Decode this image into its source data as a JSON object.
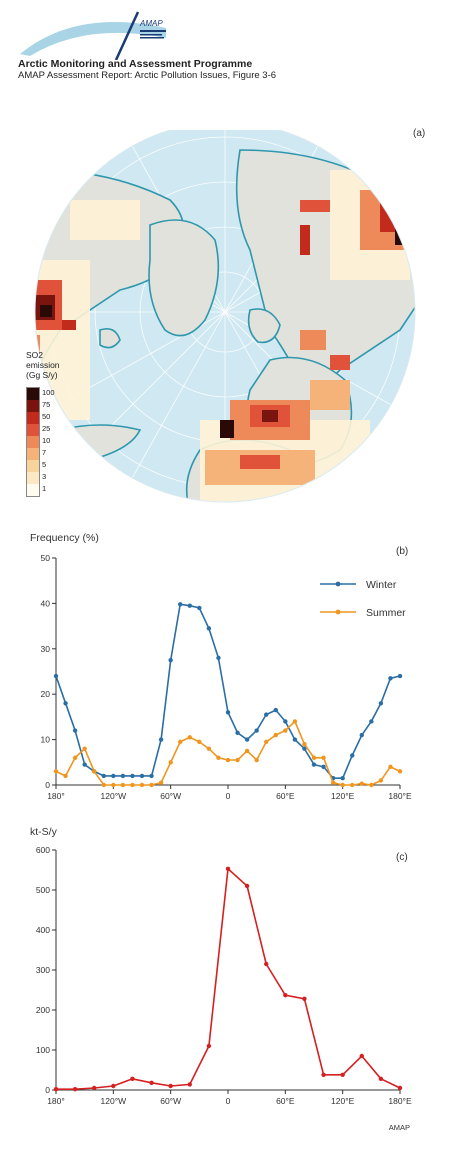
{
  "header": {
    "logo_text": "AMAP",
    "title": "Arctic Monitoring and Assessment Programme",
    "subtitle": "AMAP Assessment Report: Arctic Pollution Issues, Figure 3-6"
  },
  "panel_a": {
    "tag": "(a)",
    "legend_title": [
      "SO2",
      "emission",
      "(Gg S/y)"
    ],
    "legend_levels": [
      "100",
      "75",
      "50",
      "25",
      "10",
      "7",
      "5",
      "3",
      "1"
    ],
    "legend_colors": [
      "#2a0a06",
      "#7a140f",
      "#c22a1c",
      "#e0533a",
      "#ee8a5a",
      "#f5b37a",
      "#f9d39c",
      "#fce9c4",
      "#fffbee"
    ],
    "colors": {
      "ocean": "#cfe8f1",
      "land": "#e2e2dc",
      "coast": "#2f97ad",
      "background_land": "#fff6e0"
    }
  },
  "chart_data": [
    {
      "type": "line",
      "tag": "(b)",
      "ylabel": "Frequency (%)",
      "ylim": [
        0,
        50
      ],
      "yticks": [
        0,
        10,
        20,
        30,
        40,
        50
      ],
      "xlim": [
        -180,
        180
      ],
      "xticks": [
        -180,
        -120,
        -60,
        0,
        60,
        120,
        180
      ],
      "xtick_labels": [
        "180°",
        "120°W",
        "60°W",
        "0",
        "60°E",
        "120°E",
        "180°E"
      ],
      "legend_position": "right",
      "series": [
        {
          "name": "Winter",
          "color": "#2a6ea6",
          "x": [
            -180,
            -170,
            -160,
            -150,
            -140,
            -130,
            -120,
            -110,
            -100,
            -90,
            -80,
            -70,
            -60,
            -50,
            -40,
            -30,
            -20,
            -10,
            0,
            10,
            20,
            30,
            40,
            50,
            60,
            70,
            80,
            90,
            100,
            110,
            120,
            130,
            140,
            150,
            160,
            170,
            180
          ],
          "y": [
            24,
            18,
            12,
            4.5,
            3,
            2,
            2,
            2,
            2,
            2,
            2,
            10,
            27.5,
            39.8,
            39.5,
            39,
            34.5,
            28,
            16,
            11.5,
            10,
            12,
            15.5,
            16.5,
            14,
            10,
            8,
            4.5,
            4,
            1.5,
            1.5,
            6.5,
            11,
            14,
            18,
            23.5,
            24
          ]
        },
        {
          "name": "Summer",
          "color": "#f0961e",
          "x": [
            -180,
            -170,
            -160,
            -150,
            -140,
            -130,
            -120,
            -110,
            -100,
            -90,
            -80,
            -70,
            -60,
            -50,
            -40,
            -30,
            -20,
            -10,
            0,
            10,
            20,
            30,
            40,
            50,
            60,
            70,
            80,
            90,
            100,
            110,
            120,
            130,
            140,
            150,
            160,
            170,
            180
          ],
          "y": [
            3,
            2,
            6,
            8,
            3,
            0,
            0,
            0,
            0,
            0,
            0,
            0.5,
            5,
            9.5,
            10.5,
            9.5,
            8,
            6,
            5.5,
            5.5,
            7.5,
            5.5,
            9.5,
            11,
            12,
            14,
            9,
            6,
            6,
            0.5,
            0,
            0,
            0.3,
            0,
            1,
            4,
            3
          ]
        }
      ]
    },
    {
      "type": "line",
      "tag": "(c)",
      "ylabel": "kt-S/y",
      "ylim": [
        0,
        600
      ],
      "yticks": [
        0,
        100,
        200,
        300,
        400,
        500,
        600
      ],
      "xlim": [
        -180,
        180
      ],
      "xticks": [
        -180,
        -120,
        -60,
        0,
        60,
        120,
        180
      ],
      "xtick_labels": [
        "180°",
        "120°W",
        "60°W",
        "0",
        "60°E",
        "120°E",
        "180°E"
      ],
      "series": [
        {
          "color": "#d42020",
          "x": [
            -180,
            -160,
            -140,
            -120,
            -100,
            -80,
            -60,
            -40,
            -20,
            0,
            20,
            40,
            60,
            80,
            100,
            120,
            140,
            160,
            180
          ],
          "y": [
            2,
            2,
            5,
            10,
            28,
            18,
            10,
            14,
            110,
            553,
            510,
            315,
            237,
            228,
            38,
            38,
            85,
            28,
            5
          ]
        }
      ]
    }
  ],
  "footer": {
    "credit": "AMAP"
  }
}
